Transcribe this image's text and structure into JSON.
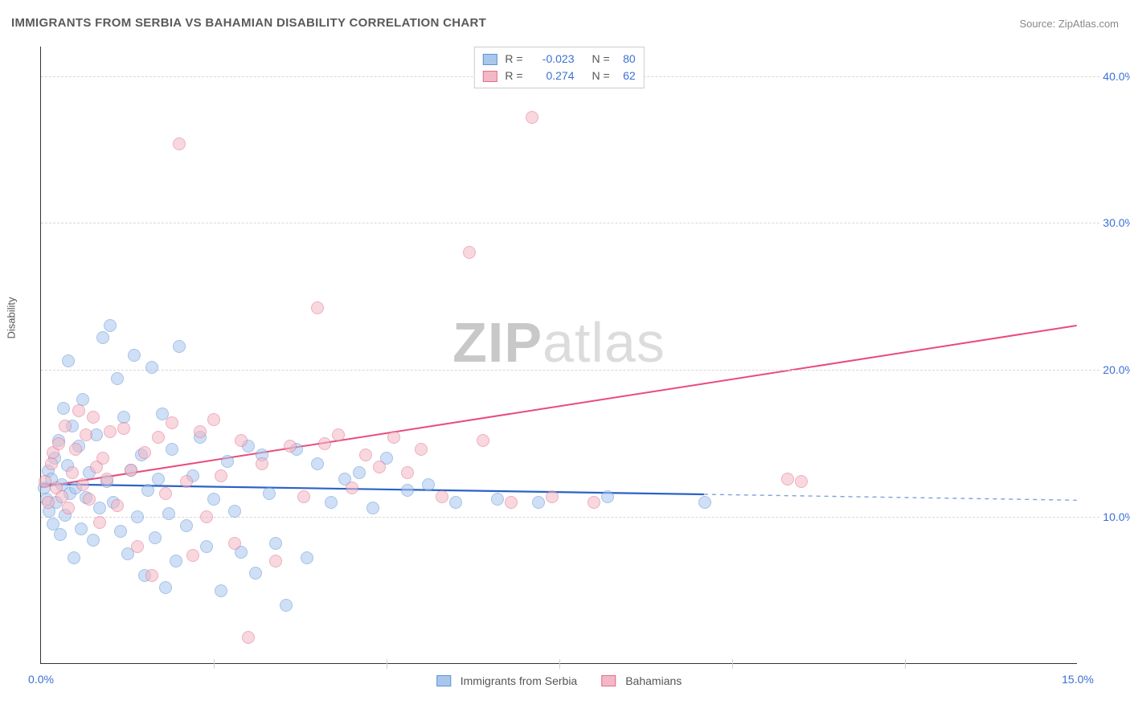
{
  "title": "IMMIGRANTS FROM SERBIA VS BAHAMIAN DISABILITY CORRELATION CHART",
  "source": "Source: ZipAtlas.com",
  "watermark_a": "ZIP",
  "watermark_b": "atlas",
  "ylabel": "Disability",
  "chart": {
    "type": "scatter",
    "background_color": "#ffffff",
    "grid_color": "#d8d8d8",
    "axis_color": "#333333",
    "text_color": "#5a5a5a",
    "tick_label_color": "#3b6fd6",
    "title_fontsize": 15,
    "label_fontsize": 13,
    "tick_fontsize": 14,
    "marker_size": 16,
    "xlim": [
      0,
      15
    ],
    "ylim": [
      0,
      42
    ],
    "x_ticks": [
      0,
      2.5,
      5.0,
      7.5,
      10.0,
      12.5,
      15.0
    ],
    "x_tick_labels": [
      "0.0%",
      "",
      "",
      "",
      "",
      "",
      "15.0%"
    ],
    "y_ticks": [
      10,
      20,
      30,
      40
    ],
    "y_tick_labels": [
      "10.0%",
      "20.0%",
      "30.0%",
      "40.0%"
    ],
    "series": [
      {
        "key": "serbia",
        "label": "Immigrants from Serbia",
        "fill_color": "#a9c6ed",
        "stroke_color": "#5e93d6",
        "fill_opacity": 0.55,
        "line_color": "#2a62c9",
        "line_width": 2.2,
        "r_value": "-0.023",
        "n_value": "80",
        "trend": {
          "x1": 0,
          "y1": 12.2,
          "x2": 9.6,
          "y2": 11.5,
          "dash_x2": 15,
          "dash_y2": 11.1
        },
        "points": [
          [
            0.05,
            12.0
          ],
          [
            0.08,
            11.2
          ],
          [
            0.1,
            13.1
          ],
          [
            0.12,
            10.4
          ],
          [
            0.15,
            12.6
          ],
          [
            0.18,
            9.5
          ],
          [
            0.2,
            14.0
          ],
          [
            0.22,
            11.0
          ],
          [
            0.25,
            15.2
          ],
          [
            0.28,
            8.8
          ],
          [
            0.3,
            12.2
          ],
          [
            0.32,
            17.4
          ],
          [
            0.35,
            10.1
          ],
          [
            0.38,
            13.5
          ],
          [
            0.4,
            20.6
          ],
          [
            0.42,
            11.6
          ],
          [
            0.45,
            16.2
          ],
          [
            0.48,
            7.2
          ],
          [
            0.5,
            12.0
          ],
          [
            0.55,
            14.8
          ],
          [
            0.58,
            9.2
          ],
          [
            0.6,
            18.0
          ],
          [
            0.65,
            11.3
          ],
          [
            0.7,
            13.0
          ],
          [
            0.75,
            8.4
          ],
          [
            0.8,
            15.6
          ],
          [
            0.85,
            10.6
          ],
          [
            0.9,
            22.2
          ],
          [
            0.95,
            12.4
          ],
          [
            1.0,
            23.0
          ],
          [
            1.05,
            11.0
          ],
          [
            1.1,
            19.4
          ],
          [
            1.15,
            9.0
          ],
          [
            1.2,
            16.8
          ],
          [
            1.25,
            7.5
          ],
          [
            1.3,
            13.2
          ],
          [
            1.35,
            21.0
          ],
          [
            1.4,
            10.0
          ],
          [
            1.45,
            14.2
          ],
          [
            1.5,
            6.0
          ],
          [
            1.55,
            11.8
          ],
          [
            1.6,
            20.2
          ],
          [
            1.65,
            8.6
          ],
          [
            1.7,
            12.6
          ],
          [
            1.75,
            17.0
          ],
          [
            1.8,
            5.2
          ],
          [
            1.85,
            10.2
          ],
          [
            1.9,
            14.6
          ],
          [
            1.95,
            7.0
          ],
          [
            2.0,
            21.6
          ],
          [
            2.1,
            9.4
          ],
          [
            2.2,
            12.8
          ],
          [
            2.3,
            15.4
          ],
          [
            2.4,
            8.0
          ],
          [
            2.5,
            11.2
          ],
          [
            2.6,
            5.0
          ],
          [
            2.7,
            13.8
          ],
          [
            2.8,
            10.4
          ],
          [
            2.9,
            7.6
          ],
          [
            3.0,
            14.8
          ],
          [
            3.1,
            6.2
          ],
          [
            3.2,
            14.2
          ],
          [
            3.3,
            11.6
          ],
          [
            3.4,
            8.2
          ],
          [
            3.55,
            4.0
          ],
          [
            3.7,
            14.6
          ],
          [
            3.85,
            7.2
          ],
          [
            4.0,
            13.6
          ],
          [
            4.2,
            11.0
          ],
          [
            4.4,
            12.6
          ],
          [
            4.6,
            13.0
          ],
          [
            4.8,
            10.6
          ],
          [
            5.0,
            14.0
          ],
          [
            5.3,
            11.8
          ],
          [
            5.6,
            12.2
          ],
          [
            6.0,
            11.0
          ],
          [
            6.6,
            11.2
          ],
          [
            7.2,
            11.0
          ],
          [
            8.2,
            11.4
          ],
          [
            9.6,
            11.0
          ]
        ]
      },
      {
        "key": "bahamians",
        "label": "Bahamians",
        "fill_color": "#f3b8c5",
        "stroke_color": "#e16f8c",
        "fill_opacity": 0.55,
        "line_color": "#e94b7a",
        "line_width": 2.0,
        "r_value": "0.274",
        "n_value": "62",
        "trend": {
          "x1": 0,
          "y1": 12.0,
          "x2": 15,
          "y2": 23.0
        },
        "points": [
          [
            0.06,
            12.4
          ],
          [
            0.1,
            11.0
          ],
          [
            0.15,
            13.6
          ],
          [
            0.18,
            14.4
          ],
          [
            0.22,
            12.0
          ],
          [
            0.25,
            15.0
          ],
          [
            0.3,
            11.4
          ],
          [
            0.35,
            16.2
          ],
          [
            0.4,
            10.6
          ],
          [
            0.45,
            13.0
          ],
          [
            0.5,
            14.6
          ],
          [
            0.55,
            17.2
          ],
          [
            0.6,
            12.2
          ],
          [
            0.65,
            15.6
          ],
          [
            0.7,
            11.2
          ],
          [
            0.75,
            16.8
          ],
          [
            0.8,
            13.4
          ],
          [
            0.85,
            9.6
          ],
          [
            0.9,
            14.0
          ],
          [
            0.95,
            12.6
          ],
          [
            1.0,
            15.8
          ],
          [
            1.1,
            10.8
          ],
          [
            1.2,
            16.0
          ],
          [
            1.3,
            13.2
          ],
          [
            1.4,
            8.0
          ],
          [
            1.5,
            14.4
          ],
          [
            1.6,
            6.0
          ],
          [
            1.7,
            15.4
          ],
          [
            1.8,
            11.6
          ],
          [
            1.9,
            16.4
          ],
          [
            2.0,
            35.4
          ],
          [
            2.1,
            12.4
          ],
          [
            2.2,
            7.4
          ],
          [
            2.3,
            15.8
          ],
          [
            2.4,
            10.0
          ],
          [
            2.5,
            16.6
          ],
          [
            2.6,
            12.8
          ],
          [
            2.8,
            8.2
          ],
          [
            2.9,
            15.2
          ],
          [
            3.0,
            1.8
          ],
          [
            3.2,
            13.6
          ],
          [
            3.4,
            7.0
          ],
          [
            3.6,
            14.8
          ],
          [
            3.8,
            11.4
          ],
          [
            4.0,
            24.2
          ],
          [
            4.1,
            15.0
          ],
          [
            4.3,
            15.6
          ],
          [
            4.5,
            12.0
          ],
          [
            4.7,
            14.2
          ],
          [
            4.9,
            13.4
          ],
          [
            5.1,
            15.4
          ],
          [
            5.3,
            13.0
          ],
          [
            5.5,
            14.6
          ],
          [
            5.8,
            11.4
          ],
          [
            6.2,
            28.0
          ],
          [
            6.4,
            15.2
          ],
          [
            6.8,
            11.0
          ],
          [
            7.1,
            37.2
          ],
          [
            7.4,
            11.4
          ],
          [
            8.0,
            11.0
          ],
          [
            10.8,
            12.6
          ],
          [
            11.0,
            12.4
          ]
        ]
      }
    ],
    "legend_top": {
      "r_label": "R =",
      "n_label": "N ="
    },
    "legend_bottom_labels": [
      "Immigrants from Serbia",
      "Bahamians"
    ]
  }
}
